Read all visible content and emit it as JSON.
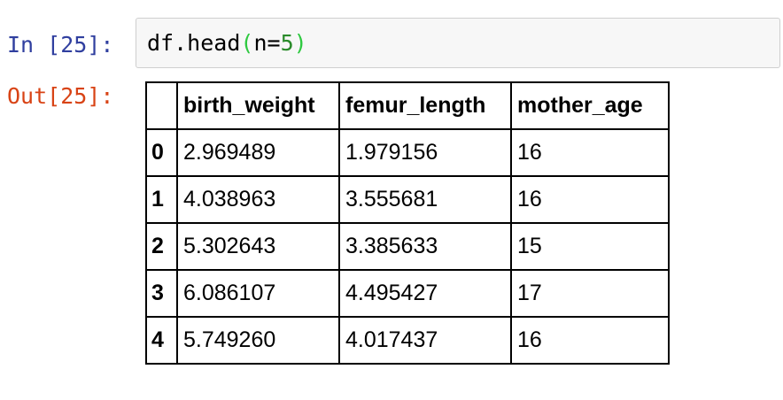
{
  "input_cell": {
    "prompt": "In [25]:",
    "code": {
      "object": "df",
      "dot": ".",
      "method": "head",
      "open_paren": "(",
      "arg_name": "n",
      "equals": "=",
      "arg_value": "5",
      "close_paren": ")"
    }
  },
  "output_cell": {
    "prompt": "Out[25]:",
    "dataframe": {
      "columns": [
        "birth_weight",
        "femur_length",
        "mother_age"
      ],
      "rows": [
        {
          "index": "0",
          "values": [
            "2.969489",
            "1.979156",
            "16"
          ]
        },
        {
          "index": "1",
          "values": [
            "4.038963",
            "3.555681",
            "16"
          ]
        },
        {
          "index": "2",
          "values": [
            "5.302643",
            "3.385633",
            "15"
          ]
        },
        {
          "index": "3",
          "values": [
            "6.086107",
            "4.495427",
            "17"
          ]
        },
        {
          "index": "4",
          "values": [
            "5.749260",
            "4.017437",
            "16"
          ]
        }
      ]
    }
  }
}
